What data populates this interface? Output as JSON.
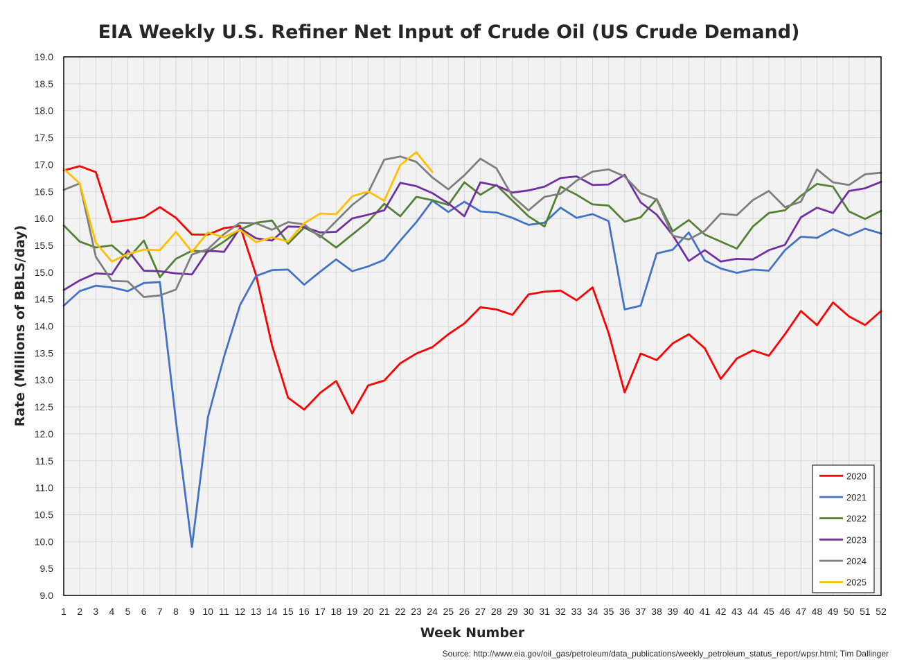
{
  "chart_data": {
    "type": "line",
    "title": "EIA Weekly U.S. Refiner Net Input of Crude Oil (US Crude Demand)",
    "xlabel": "Week Number",
    "ylabel": "Rate (Millions of BBLS/day)",
    "source": "Source: http://www.eia.gov/oil_gas/petroleum/data_publications/weekly_petroleum_status_report/wpsr.html; Tim Dallinger",
    "xlim": [
      1,
      52
    ],
    "ylim": [
      9.0,
      19.0
    ],
    "ytick_step": 0.5,
    "grid": true,
    "legend_position": "bottom-right",
    "y_ticks": [
      "9.0",
      "9.5",
      "10.0",
      "10.5",
      "11.0",
      "11.5",
      "12.0",
      "12.5",
      "13.0",
      "13.5",
      "14.0",
      "14.5",
      "15.0",
      "15.5",
      "16.0",
      "16.5",
      "17.0",
      "17.5",
      "18.0",
      "18.5",
      "19.0"
    ],
    "x_ticks": [
      "1",
      "2",
      "3",
      "4",
      "5",
      "6",
      "7",
      "8",
      "9",
      "10",
      "11",
      "12",
      "13",
      "14",
      "15",
      "16",
      "17",
      "18",
      "19",
      "20",
      "21",
      "22",
      "23",
      "24",
      "25",
      "26",
      "27",
      "28",
      "29",
      "30",
      "31",
      "32",
      "33",
      "34",
      "35",
      "36",
      "37",
      "38",
      "39",
      "40",
      "41",
      "42",
      "43",
      "44",
      "45",
      "46",
      "47",
      "48",
      "49",
      "50",
      "51",
      "52"
    ],
    "series": [
      {
        "name": "2020",
        "color": "#ff0000",
        "values": [
          16.89,
          16.97,
          16.86,
          15.93,
          15.97,
          16.02,
          16.21,
          16.01,
          15.7,
          15.7,
          15.82,
          15.86,
          14.95,
          13.64,
          12.67,
          12.45,
          12.76,
          12.98,
          12.38,
          12.9,
          12.99,
          13.31,
          13.49,
          13.61,
          13.85,
          14.05,
          14.35,
          14.31,
          14.21,
          14.59,
          14.64,
          14.66,
          14.48,
          14.72,
          13.87,
          12.77,
          13.49,
          13.37,
          13.68,
          13.85,
          13.59,
          13.02,
          13.4,
          13.55,
          13.45,
          13.85,
          14.28,
          14.02,
          14.44,
          14.18,
          14.02,
          14.28
        ]
      },
      {
        "name": "2021",
        "color": "#4472c4",
        "values": [
          14.38,
          14.65,
          14.75,
          14.72,
          14.65,
          14.8,
          14.82,
          12.24,
          9.9,
          12.31,
          13.43,
          14.39,
          14.93,
          15.04,
          15.05,
          14.77,
          15.01,
          15.24,
          15.02,
          15.11,
          15.23,
          15.59,
          15.93,
          16.33,
          16.12,
          16.31,
          16.13,
          16.11,
          16.01,
          15.88,
          15.92,
          16.2,
          16.01,
          16.08,
          15.95,
          14.31,
          14.38,
          15.35,
          15.42,
          15.74,
          15.22,
          15.07,
          14.99,
          15.05,
          15.03,
          15.41,
          15.66,
          15.64,
          15.8,
          15.68,
          15.81,
          15.72
        ]
      },
      {
        "name": "2022",
        "color": "#548235",
        "values": [
          15.87,
          15.57,
          15.46,
          15.5,
          15.25,
          15.59,
          14.91,
          15.25,
          15.4,
          15.38,
          15.57,
          15.79,
          15.92,
          15.96,
          15.53,
          15.83,
          15.68,
          15.46,
          15.7,
          15.94,
          16.27,
          16.04,
          16.4,
          16.34,
          16.25,
          16.67,
          16.44,
          16.62,
          16.33,
          16.04,
          15.85,
          16.59,
          16.44,
          16.26,
          16.24,
          15.94,
          16.02,
          16.36,
          15.76,
          15.97,
          15.7,
          15.57,
          15.44,
          15.85,
          16.1,
          16.15,
          16.42,
          16.64,
          16.59,
          16.13,
          15.99,
          16.14
        ]
      },
      {
        "name": "2023",
        "color": "#7030a0",
        "values": [
          14.67,
          14.85,
          14.98,
          14.96,
          15.41,
          15.03,
          15.02,
          14.98,
          14.96,
          15.4,
          15.38,
          15.82,
          15.63,
          15.59,
          15.85,
          15.84,
          15.74,
          15.75,
          16.0,
          16.07,
          16.15,
          16.66,
          16.6,
          16.47,
          16.28,
          16.04,
          16.67,
          16.61,
          16.48,
          16.52,
          16.59,
          16.75,
          16.78,
          16.62,
          16.63,
          16.81,
          16.3,
          16.07,
          15.69,
          15.21,
          15.41,
          15.2,
          15.25,
          15.24,
          15.41,
          15.51,
          16.02,
          16.2,
          16.1,
          16.51,
          16.56,
          16.68
        ]
      },
      {
        "name": "2024",
        "color": "#7f7f7f",
        "values": [
          16.53,
          16.65,
          15.29,
          14.84,
          14.83,
          14.54,
          14.57,
          14.68,
          15.33,
          15.43,
          15.71,
          15.92,
          15.91,
          15.79,
          15.93,
          15.89,
          15.65,
          15.95,
          16.25,
          16.48,
          17.09,
          17.15,
          17.05,
          16.76,
          16.54,
          16.8,
          17.11,
          16.93,
          16.41,
          16.15,
          16.4,
          16.46,
          16.7,
          16.87,
          16.91,
          16.78,
          16.47,
          16.35,
          15.68,
          15.61,
          15.77,
          16.09,
          16.06,
          16.34,
          16.51,
          16.21,
          16.31,
          16.91,
          16.67,
          16.62,
          16.82,
          16.85
        ]
      },
      {
        "name": "2025",
        "color": "#ffc000",
        "values": [
          16.92,
          16.65,
          15.55,
          15.2,
          15.34,
          15.42,
          15.41,
          15.75,
          15.38,
          15.74,
          15.65,
          15.79,
          15.56,
          15.65,
          15.57,
          15.91,
          16.09,
          16.08,
          16.41,
          16.5,
          16.33,
          16.99,
          17.23,
          16.86
        ]
      }
    ]
  }
}
